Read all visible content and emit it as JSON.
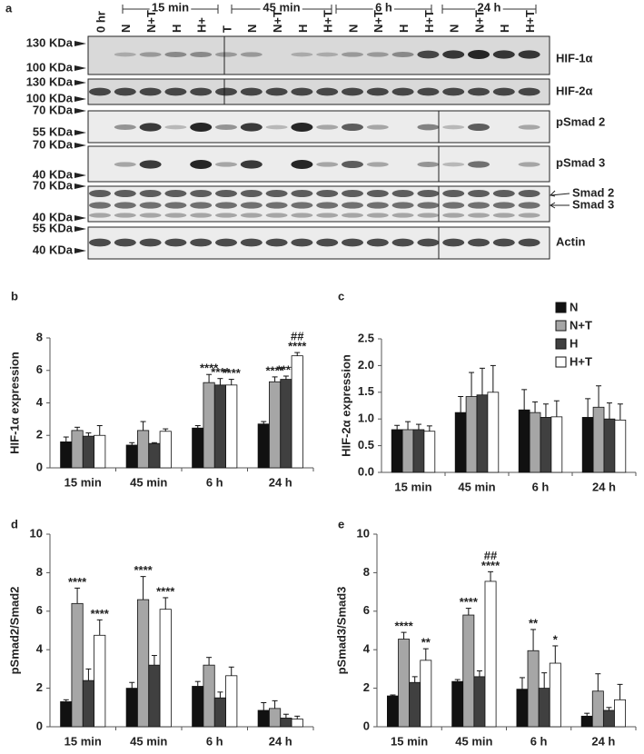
{
  "blot": {
    "panel": "a",
    "groups": [
      "15 min",
      "45 min",
      "6 h",
      "24 h"
    ],
    "lanes": [
      "0 hr",
      "N",
      "N+T",
      "H",
      "H+",
      "T",
      "N",
      "N+T",
      "H",
      "H+T",
      "N",
      "N+T",
      "H",
      "H+T",
      "N",
      "N+T",
      "H",
      "H+T"
    ],
    "markers": [
      "130 KDa",
      "100 KDa",
      "130 KDa",
      "100 KDa",
      "70 KDa",
      "55 KDa",
      "70 KDa",
      "40 KDa",
      "70 KDa",
      "40 KDa",
      "55 KDa",
      "40 KDa"
    ],
    "proteins": [
      "HIF-1α",
      "HIF-2α",
      "pSmad 2",
      "pSmad 3",
      "Smad 2",
      "Smad 3",
      "Actin"
    ]
  },
  "chart_data": [
    {
      "type": "bar",
      "panel": "b",
      "ylabel": "HIF-1α expression",
      "categories": [
        "15 min",
        "45 min",
        "6 h",
        "24 h"
      ],
      "ylim": [
        0,
        8
      ],
      "yticks": [
        0,
        2,
        4,
        6,
        8
      ],
      "series": [
        {
          "name": "N",
          "color": "#111111",
          "values": [
            1.6,
            1.4,
            2.45,
            2.7
          ],
          "errors": [
            0.3,
            0.15,
            0.15,
            0.15
          ],
          "annotations": [
            null,
            null,
            null,
            null
          ]
        },
        {
          "name": "N+T",
          "color": "#a6a6a6",
          "values": [
            2.3,
            2.3,
            5.25,
            5.3
          ],
          "errors": [
            0.2,
            0.55,
            0.5,
            0.3
          ],
          "annotations": [
            null,
            null,
            [
              "****"
            ],
            [
              "****"
            ]
          ]
        },
        {
          "name": "H",
          "color": "#404040",
          "values": [
            1.95,
            1.5,
            5.1,
            5.45
          ],
          "errors": [
            0.2,
            0.05,
            0.4,
            0.2
          ],
          "annotations": [
            null,
            null,
            [
              "****"
            ],
            [
              "****"
            ]
          ]
        },
        {
          "name": "H+T",
          "color": "#ffffff",
          "values": [
            2.0,
            2.25,
            5.1,
            6.9
          ],
          "errors": [
            0.6,
            0.15,
            0.35,
            0.2
          ],
          "annotations": [
            null,
            null,
            [
              "****"
            ],
            [
              "##",
              "****"
            ]
          ]
        }
      ]
    },
    {
      "type": "bar",
      "panel": "c",
      "ylabel": "HIF-2α expression",
      "legend": "right",
      "categories": [
        "15 min",
        "45 min",
        "6 h",
        "24 h"
      ],
      "ylim": [
        0,
        2.5
      ],
      "yticks": [
        {
          "value": 0,
          "label": "0.0"
        },
        0.5,
        {
          "value": 1,
          "label": "1.0"
        },
        1.5,
        {
          "value": 2,
          "label": "2.0"
        },
        2.5
      ],
      "series": [
        {
          "name": "N",
          "color": "#111111",
          "values": [
            0.8,
            1.12,
            1.17,
            1.03
          ],
          "errors": [
            0.08,
            0.3,
            0.38,
            0.35
          ],
          "annotations": [
            null,
            null,
            null,
            null
          ]
        },
        {
          "name": "N+T",
          "color": "#a6a6a6",
          "values": [
            0.8,
            1.42,
            1.12,
            1.22
          ],
          "errors": [
            0.15,
            0.45,
            0.2,
            0.4
          ],
          "annotations": [
            null,
            null,
            null,
            null
          ]
        },
        {
          "name": "H",
          "color": "#404040",
          "values": [
            0.8,
            1.45,
            1.03,
            1.0
          ],
          "errors": [
            0.1,
            0.5,
            0.25,
            0.3
          ],
          "annotations": [
            null,
            null,
            null,
            null
          ]
        },
        {
          "name": "H+T",
          "color": "#ffffff",
          "values": [
            0.77,
            1.5,
            1.04,
            0.98
          ],
          "errors": [
            0.1,
            0.5,
            0.3,
            0.3
          ],
          "annotations": [
            null,
            null,
            null,
            null
          ]
        }
      ]
    },
    {
      "type": "bar",
      "panel": "d",
      "ylabel": "pSmad2/Smad2",
      "categories": [
        "15 min",
        "45 min",
        "6 h",
        "24 h"
      ],
      "ylim": [
        0,
        10
      ],
      "yticks": [
        0,
        2,
        4,
        6,
        8,
        10
      ],
      "series": [
        {
          "name": "N",
          "color": "#111111",
          "values": [
            1.3,
            2.0,
            2.1,
            0.85
          ],
          "errors": [
            0.1,
            0.3,
            0.25,
            0.4
          ],
          "annotations": [
            null,
            null,
            null,
            null
          ]
        },
        {
          "name": "N+T",
          "color": "#a6a6a6",
          "values": [
            6.4,
            6.6,
            3.2,
            0.95
          ],
          "errors": [
            0.8,
            1.2,
            0.4,
            0.4
          ],
          "annotations": [
            [
              "****"
            ],
            [
              "****"
            ],
            null,
            null
          ]
        },
        {
          "name": "H",
          "color": "#404040",
          "values": [
            2.4,
            3.2,
            1.5,
            0.45
          ],
          "errors": [
            0.6,
            0.5,
            0.3,
            0.2
          ],
          "annotations": [
            null,
            null,
            null,
            null
          ]
        },
        {
          "name": "H+T",
          "color": "#ffffff",
          "values": [
            4.75,
            6.1,
            2.65,
            0.4
          ],
          "errors": [
            0.8,
            0.6,
            0.45,
            0.15
          ],
          "annotations": [
            [
              "****"
            ],
            [
              "****"
            ],
            null,
            null
          ]
        }
      ]
    },
    {
      "type": "bar",
      "panel": "e",
      "ylabel": "pSmad3/Smad3",
      "categories": [
        "15 min",
        "45 min",
        "6 h",
        "24 h"
      ],
      "ylim": [
        0,
        10
      ],
      "yticks": [
        0,
        2,
        4,
        6,
        8,
        10
      ],
      "series": [
        {
          "name": "N",
          "color": "#111111",
          "values": [
            1.6,
            2.35,
            1.95,
            0.55
          ],
          "errors": [
            0.05,
            0.1,
            0.6,
            0.15
          ],
          "annotations": [
            null,
            null,
            null,
            null
          ]
        },
        {
          "name": "N+T",
          "color": "#a6a6a6",
          "values": [
            4.55,
            5.8,
            3.95,
            1.85
          ],
          "errors": [
            0.35,
            0.35,
            1.1,
            0.9
          ],
          "annotations": [
            [
              "****"
            ],
            [
              "****"
            ],
            [
              "**"
            ],
            null
          ]
        },
        {
          "name": "H",
          "color": "#404040",
          "values": [
            2.3,
            2.6,
            2.0,
            0.85
          ],
          "errors": [
            0.3,
            0.3,
            0.8,
            0.15
          ],
          "annotations": [
            null,
            null,
            null,
            null
          ]
        },
        {
          "name": "H+T",
          "color": "#ffffff",
          "values": [
            3.45,
            7.55,
            3.3,
            1.4
          ],
          "errors": [
            0.6,
            0.5,
            0.9,
            0.8
          ],
          "annotations": [
            [
              "**"
            ],
            [
              "##",
              "****"
            ],
            [
              "*"
            ],
            null
          ]
        }
      ]
    }
  ]
}
